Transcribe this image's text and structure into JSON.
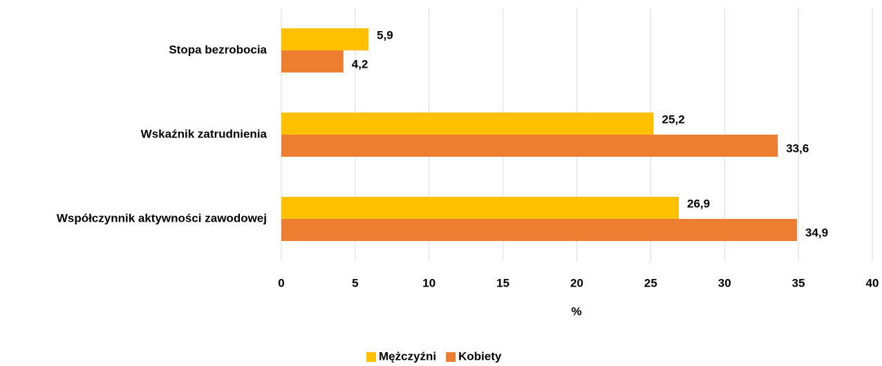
{
  "chart_data": {
    "type": "barh",
    "categories": [
      "Stopa bezrobocia",
      "Wskaźnik zatrudnienia",
      "Współczynnik aktywności zawodowej"
    ],
    "series": [
      {
        "name": "Mężczyźni",
        "color": "#ffc000",
        "values": [
          5.9,
          25.2,
          26.9
        ],
        "value_labels": [
          "5,9",
          "25,2",
          "26,9"
        ]
      },
      {
        "name": "Kobiety",
        "color": "#ed7d31",
        "values": [
          4.2,
          33.6,
          34.9
        ],
        "value_labels": [
          "4,2",
          "33,6",
          "34,9"
        ]
      }
    ],
    "xlabel": "%",
    "xlim": [
      0,
      40
    ],
    "xticks": [
      0,
      5,
      10,
      15,
      20,
      25,
      30,
      35,
      40
    ],
    "grid": true,
    "legend": "bottom"
  }
}
